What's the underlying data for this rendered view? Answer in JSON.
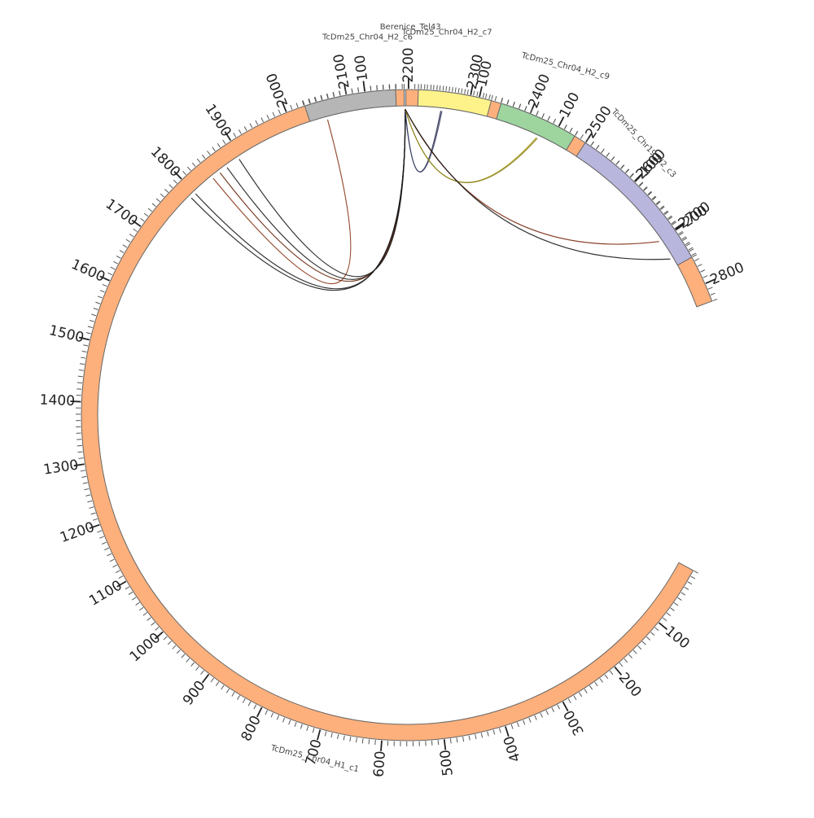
{
  "chart_data": {
    "type": "chord",
    "title": "",
    "segments": [
      {
        "id": "c1",
        "name": "TcDm25_Chr04_H1_c1",
        "length": 2830,
        "color": "#fdb07c",
        "ticks": [
          "100",
          "200",
          "300",
          "400",
          "500",
          "600",
          "700",
          "800",
          "900",
          "1000",
          "1100",
          "1200",
          "1300",
          "1400",
          "1500",
          "1600",
          "1700",
          "1800",
          "1900",
          "2000",
          "2100",
          "2200",
          "2300",
          "2400",
          "2500",
          "2600",
          "2700",
          "2800"
        ]
      },
      {
        "id": "h2",
        "name": "TcDm25_Chr04_H2_c6",
        "length": 150,
        "color": "#b6b6b6",
        "ticks": [
          "100"
        ]
      },
      {
        "id": "tel",
        "name": "Berenice_Tel43",
        "length": 2,
        "color": "#d4e8f0",
        "ticks": []
      },
      {
        "id": "c7",
        "name": "TcDm25_Chr04_H2_c7",
        "length": 120,
        "color": "#fef38a",
        "ticks": [
          "100"
        ]
      },
      {
        "id": "c9",
        "name": "TcDm25_Chr04_H2_c9",
        "length": 130,
        "color": "#9ed59f",
        "ticks": [
          "100"
        ]
      },
      {
        "id": "c3",
        "name": "TcDm25_Chr19_H2_c3",
        "length": 250,
        "color": "#b9b6dd",
        "ticks": [
          "100",
          "200"
        ]
      }
    ],
    "links": [
      {
        "from": "h2",
        "from_pos": 30,
        "to": "c1",
        "to_pos": 1840,
        "color": "#8b3a1a"
      },
      {
        "from": "tel",
        "from_pos": 1,
        "to": "c1",
        "to_pos": 1870,
        "color": "#1a1a1a"
      },
      {
        "from": "tel",
        "from_pos": 1,
        "to": "c1",
        "to_pos": 1855,
        "color": "#6b2a10"
      },
      {
        "from": "tel",
        "from_pos": 1,
        "to": "c1",
        "to_pos": 1800,
        "color": "#1a1a1a"
      },
      {
        "from": "tel",
        "from_pos": 1,
        "to": "c1",
        "to_pos": 1790,
        "color": "#1a1a1a"
      },
      {
        "from": "tel",
        "from_pos": 1,
        "to": "c1",
        "to_pos": 1895,
        "color": "#1a1a1a"
      },
      {
        "from": "tel",
        "from_pos": 1,
        "to": "c7",
        "to_pos": 40,
        "color": "#2b2e4a"
      },
      {
        "from": "tel",
        "from_pos": 1,
        "to": "c7",
        "to_pos": 42,
        "color": "#3b3f68"
      },
      {
        "from": "tel",
        "from_pos": 1,
        "to": "c9",
        "to_pos": 75,
        "color": "#b5a82a"
      },
      {
        "from": "tel",
        "from_pos": 1,
        "to": "c9",
        "to_pos": 77,
        "color": "#8a7f1e"
      },
      {
        "from": "tel",
        "from_pos": 1,
        "to": "c3",
        "to_pos": 200,
        "color": "#7a2a10"
      },
      {
        "from": "tel",
        "from_pos": 1,
        "to": "c3",
        "to_pos": 235,
        "color": "#1a1a1a"
      }
    ]
  }
}
